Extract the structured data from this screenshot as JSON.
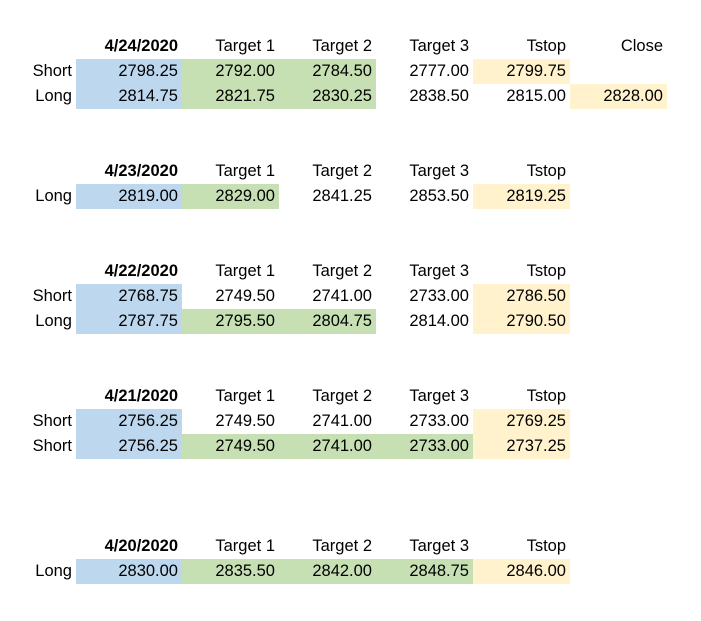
{
  "colors": {
    "entry": "#bdd7ee",
    "target_hit": "#c6e0b4",
    "stop": "#fff2cc"
  },
  "blocks": [
    {
      "date": "4/24/2020",
      "headers": [
        "Target 1",
        "Target 2",
        "Target 3",
        "Tstop",
        "Close"
      ],
      "rows": [
        {
          "side": "Short",
          "entry": "2798.25",
          "t1": "2792.00",
          "t2": "2784.50",
          "t3": "2777.00",
          "tstop": "2799.75",
          "close": ""
        },
        {
          "side": "Long",
          "entry": "2814.75",
          "t1": "2821.75",
          "t2": "2830.25",
          "t3": "2838.50",
          "tstop": "2815.00",
          "close": "2828.00"
        }
      ]
    },
    {
      "date": "4/23/2020",
      "headers": [
        "Target 1",
        "Target 2",
        "Target 3",
        "Tstop"
      ],
      "rows": [
        {
          "side": "Long",
          "entry": "2819.00",
          "t1": "2829.00",
          "t2": "2841.25",
          "t3": "2853.50",
          "tstop": "2819.25"
        }
      ]
    },
    {
      "date": "4/22/2020",
      "headers": [
        "Target 1",
        "Target 2",
        "Target 3",
        "Tstop"
      ],
      "rows": [
        {
          "side": "Short",
          "entry": "2768.75",
          "t1": "2749.50",
          "t2": "2741.00",
          "t3": "2733.00",
          "tstop": "2786.50"
        },
        {
          "side": "Long",
          "entry": "2787.75",
          "t1": "2795.50",
          "t2": "2804.75",
          "t3": "2814.00",
          "tstop": "2790.50"
        }
      ]
    },
    {
      "date": "4/21/2020",
      "headers": [
        "Target 1",
        "Target 2",
        "Target 3",
        "Tstop"
      ],
      "rows": [
        {
          "side": "Short",
          "entry": "2756.25",
          "t1": "2749.50",
          "t2": "2741.00",
          "t3": "2733.00",
          "tstop": "2769.25"
        },
        {
          "side": "Short",
          "entry": "2756.25",
          "t1": "2749.50",
          "t2": "2741.00",
          "t3": "2733.00",
          "tstop": "2737.25"
        }
      ]
    },
    {
      "date": "4/20/2020",
      "headers": [
        "Target 1",
        "Target 2",
        "Target 3",
        "Tstop"
      ],
      "rows": [
        {
          "side": "Long",
          "entry": "2830.00",
          "t1": "2835.50",
          "t2": "2842.00",
          "t3": "2848.75",
          "tstop": "2846.00"
        }
      ]
    }
  ]
}
